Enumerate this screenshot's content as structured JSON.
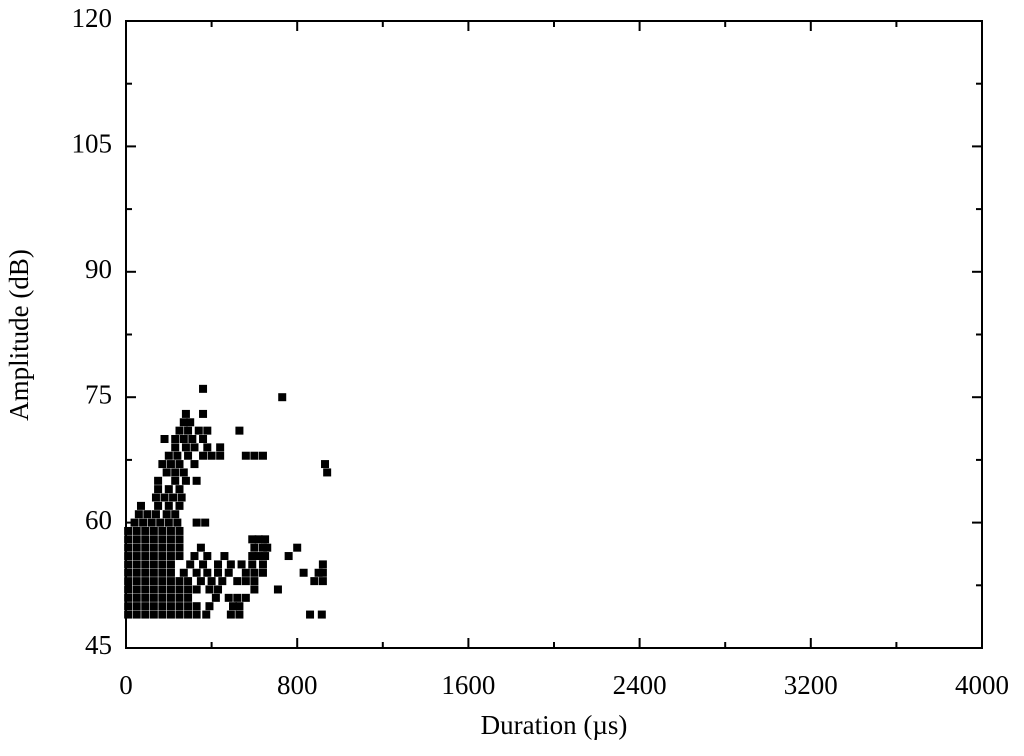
{
  "chart_data": {
    "type": "scatter",
    "x_label": "Duration (µs)",
    "y_label": "Amplitude (dB)",
    "xlim": [
      0,
      4000
    ],
    "xticks": [
      0,
      800,
      1600,
      2400,
      3200,
      4000
    ],
    "ylim": [
      45,
      120
    ],
    "yticks": [
      45,
      60,
      75,
      90,
      105,
      120
    ],
    "color": "#000000",
    "x": [
      10,
      50,
      90,
      130,
      170,
      210,
      250,
      290,
      330,
      375,
      490,
      530,
      860,
      915,
      10,
      50,
      90,
      130,
      170,
      210,
      250,
      290,
      330,
      390,
      500,
      530,
      10,
      50,
      90,
      130,
      170,
      210,
      250,
      290,
      420,
      480,
      520,
      560,
      10,
      50,
      90,
      130,
      170,
      210,
      250,
      290,
      330,
      390,
      430,
      600,
      710,
      10,
      50,
      90,
      130,
      170,
      210,
      250,
      290,
      350,
      400,
      450,
      520,
      560,
      600,
      880,
      920,
      10,
      50,
      90,
      130,
      170,
      210,
      270,
      330,
      380,
      430,
      480,
      560,
      600,
      640,
      830,
      900,
      920,
      10,
      50,
      90,
      130,
      170,
      210,
      300,
      360,
      430,
      490,
      540,
      590,
      640,
      920,
      10,
      50,
      90,
      130,
      170,
      210,
      250,
      320,
      380,
      460,
      590,
      620,
      650,
      760,
      10,
      50,
      90,
      130,
      170,
      210,
      250,
      350,
      600,
      640,
      660,
      800,
      10,
      50,
      90,
      130,
      170,
      210,
      250,
      590,
      620,
      650,
      10,
      50,
      90,
      130,
      170,
      210,
      250,
      40,
      80,
      120,
      160,
      200,
      240,
      330,
      370,
      60,
      100,
      140,
      190,
      230,
      70,
      150,
      200,
      250,
      140,
      180,
      220,
      260,
      150,
      200,
      250,
      150,
      230,
      280,
      330,
      190,
      230,
      270,
      940,
      170,
      210,
      250,
      320,
      930,
      200,
      240,
      290,
      360,
      400,
      440,
      560,
      600,
      640,
      230,
      280,
      320,
      380,
      440,
      180,
      230,
      270,
      310,
      360,
      250,
      290,
      340,
      380,
      530,
      270,
      300,
      280,
      360,
      730,
      360
    ],
    "values": [
      49,
      49,
      49,
      49,
      49,
      49,
      49,
      49,
      49,
      49,
      49,
      49,
      49,
      49,
      50,
      50,
      50,
      50,
      50,
      50,
      50,
      50,
      50,
      50,
      50,
      50,
      51,
      51,
      51,
      51,
      51,
      51,
      51,
      51,
      51,
      51,
      51,
      51,
      52,
      52,
      52,
      52,
      52,
      52,
      52,
      52,
      52,
      52,
      52,
      52,
      52,
      53,
      53,
      53,
      53,
      53,
      53,
      53,
      53,
      53,
      53,
      53,
      53,
      53,
      53,
      53,
      53,
      54,
      54,
      54,
      54,
      54,
      54,
      54,
      54,
      54,
      54,
      54,
      54,
      54,
      54,
      54,
      54,
      54,
      55,
      55,
      55,
      55,
      55,
      55,
      55,
      55,
      55,
      55,
      55,
      55,
      55,
      55,
      56,
      56,
      56,
      56,
      56,
      56,
      56,
      56,
      56,
      56,
      56,
      56,
      56,
      56,
      57,
      57,
      57,
      57,
      57,
      57,
      57,
      57,
      57,
      57,
      57,
      57,
      58,
      58,
      58,
      58,
      58,
      58,
      58,
      58,
      58,
      58,
      59,
      59,
      59,
      59,
      59,
      59,
      59,
      60,
      60,
      60,
      60,
      60,
      60,
      60,
      60,
      61,
      61,
      61,
      61,
      61,
      62,
      62,
      62,
      62,
      63,
      63,
      63,
      63,
      64,
      64,
      64,
      65,
      65,
      65,
      65,
      66,
      66,
      66,
      66,
      67,
      67,
      67,
      67,
      67,
      68,
      68,
      68,
      68,
      68,
      68,
      68,
      68,
      68,
      69,
      69,
      69,
      69,
      69,
      70,
      70,
      70,
      70,
      70,
      71,
      71,
      71,
      71,
      71,
      72,
      72,
      73,
      73,
      75,
      76
    ]
  }
}
